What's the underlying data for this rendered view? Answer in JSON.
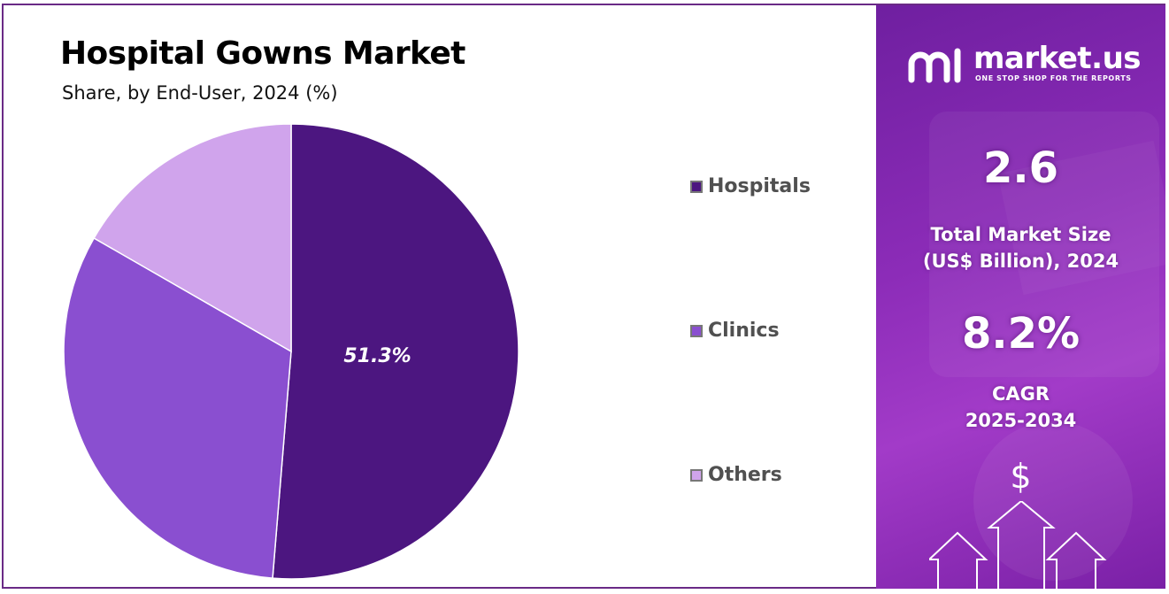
{
  "title": "Hospital Gowns Market",
  "subtitle": "Share, by End-User, 2024 (%)",
  "chart_data": {
    "type": "pie",
    "title": "Hospital Gowns Market",
    "subtitle": "Share, by End-User, 2024 (%)",
    "start_angle_deg": 0,
    "direction": "clockwise",
    "legend_position": "right",
    "slices": [
      {
        "label": "Hospitals",
        "value": 51.3,
        "color": "#4c1680",
        "data_label": "51.3%"
      },
      {
        "label": "Clinics",
        "value": 32.0,
        "color": "#8a4fd0",
        "data_label": ""
      },
      {
        "label": "Others",
        "value": 16.7,
        "color": "#d0a4ec",
        "data_label": ""
      }
    ]
  },
  "legend": [
    {
      "label": "Hospitals",
      "color": "#4c1680"
    },
    {
      "label": "Clinics",
      "color": "#8a4fd0"
    },
    {
      "label": "Others",
      "color": "#d0a4ec"
    }
  ],
  "sidebar": {
    "logo_text": "market.us",
    "logo_tagline": "ONE STOP SHOP FOR THE REPORTS",
    "market_size_value": "2.6",
    "market_size_label_line1": "Total Market Size",
    "market_size_label_line2": "(US$ Billion), 2024",
    "cagr_value": "8.2%",
    "cagr_label_line1": "CAGR",
    "cagr_label_line2": "2025-2034",
    "currency_symbol": "$"
  }
}
